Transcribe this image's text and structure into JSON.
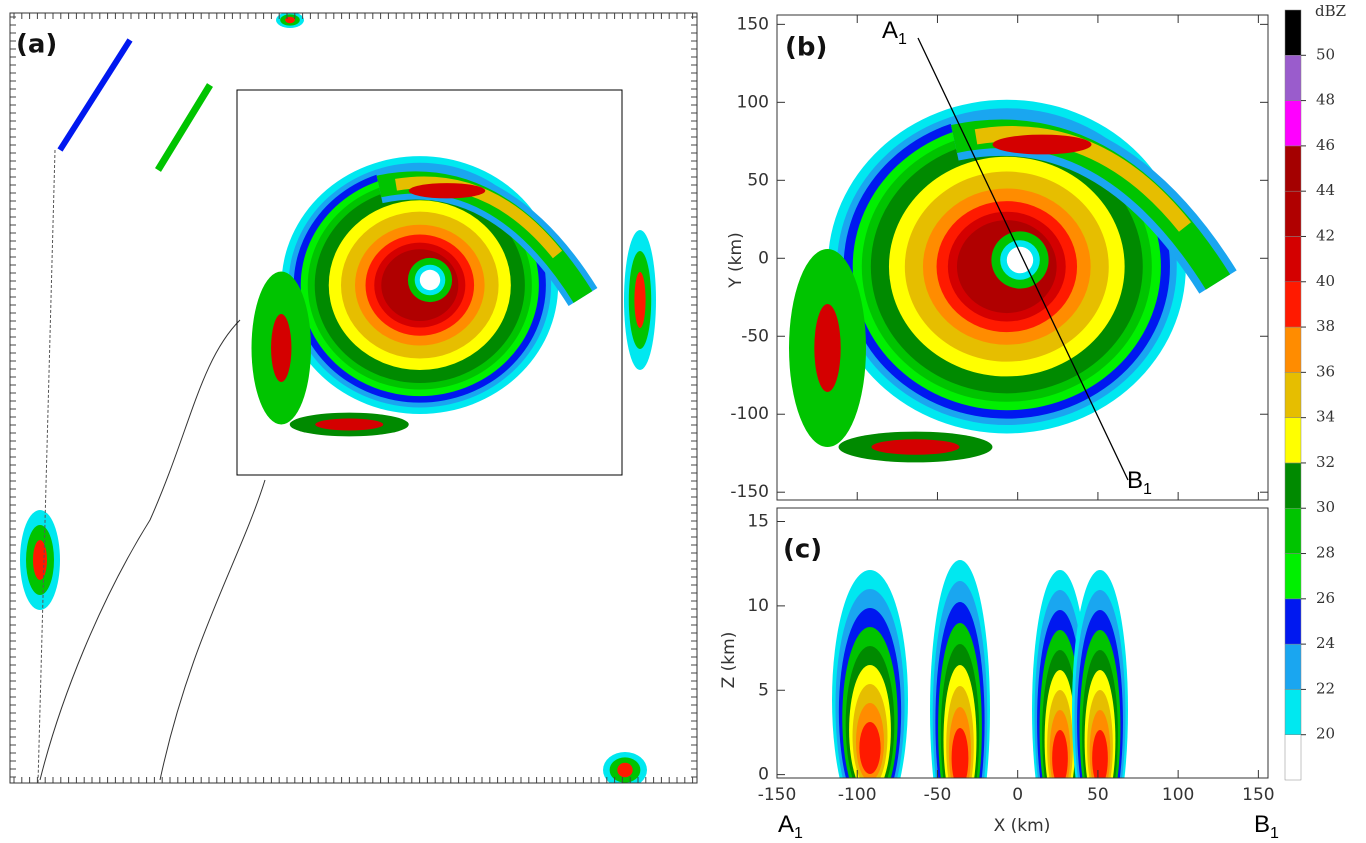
{
  "panel_a": {
    "label": "(a)"
  },
  "panel_b": {
    "label": "(b)",
    "ylabel": "Y (km)",
    "ylim": [
      -155,
      156
    ],
    "yticks": [
      -150,
      -100,
      -50,
      0,
      50,
      100,
      150
    ]
  },
  "panel_c": {
    "label": "(c)",
    "xlabel": "X (km)",
    "ylabel": "Z (km)",
    "xlim": [
      -150,
      156
    ],
    "xticks": [
      -150,
      -100,
      -50,
      0,
      50,
      100,
      150
    ],
    "ylim": [
      -0.2,
      15.8
    ],
    "yticks": [
      0,
      5,
      10,
      15
    ]
  },
  "section": {
    "start": "A",
    "end": "B",
    "index": "1"
  },
  "colorbar": {
    "unit": "dBZ",
    "levels": [
      20,
      22,
      24,
      26,
      28,
      30,
      32,
      34,
      36,
      38,
      40,
      42,
      44,
      46,
      48,
      50
    ],
    "colors": [
      "#ffffff",
      "#00e8f0",
      "#1aa6f0",
      "#0018f0",
      "#00f000",
      "#00c400",
      "#008a00",
      "#ffff00",
      "#e6be00",
      "#ff8c00",
      "#ff1a00",
      "#d40000",
      "#b00000",
      "#a40000",
      "#ff00ff",
      "#9a5ccc",
      "#000000"
    ]
  }
}
